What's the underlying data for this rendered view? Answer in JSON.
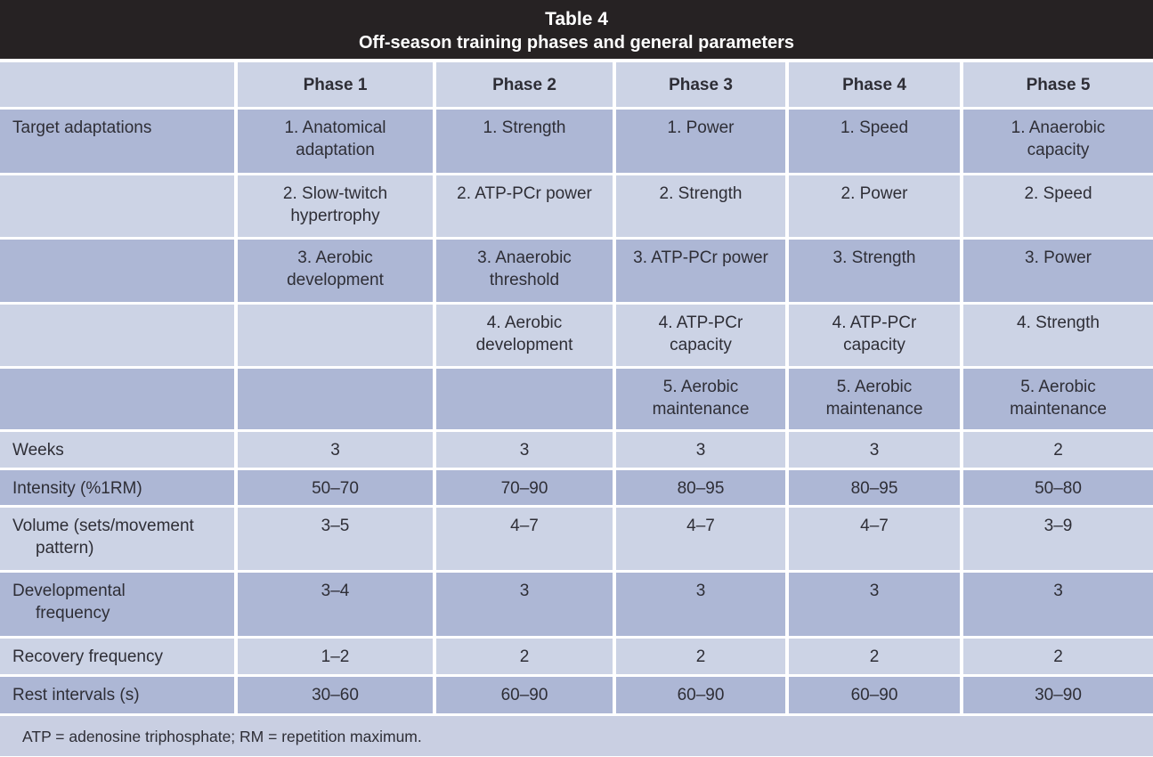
{
  "table": {
    "title": "Table 4",
    "subtitle": "Off-season training phases and general parameters",
    "columns": [
      "Phase 1",
      "Phase 2",
      "Phase 3",
      "Phase 4",
      "Phase 5"
    ],
    "adaptations": {
      "label": "Target adaptations",
      "rows": [
        [
          "1. Anatomical\nadaptation",
          "1. Strength",
          "1. Power",
          "1. Speed",
          "1. Anaerobic\ncapacity"
        ],
        [
          "2. Slow-twitch\nhypertrophy",
          "2. ATP-PCr power",
          "2. Strength",
          "2. Power",
          "2. Speed"
        ],
        [
          "3. Aerobic\ndevelopment",
          "3. Anaerobic\nthreshold",
          "3. ATP-PCr power",
          "3. Strength",
          "3. Power"
        ],
        [
          "",
          "4. Aerobic\ndevelopment",
          "4. ATP-PCr\ncapacity",
          "4. ATP-PCr\ncapacity",
          "4. Strength"
        ],
        [
          "",
          "",
          "5. Aerobic\nmaintenance",
          "5. Aerobic\nmaintenance",
          "5. Aerobic\nmaintenance"
        ]
      ]
    },
    "parameters": [
      {
        "label": "Weeks",
        "values": [
          "3",
          "3",
          "3",
          "3",
          "2"
        ]
      },
      {
        "label": "Intensity (%1RM)",
        "values": [
          "50–70",
          "70–90",
          "80–95",
          "80–95",
          "50–80"
        ]
      },
      {
        "label": "Volume (sets/movement\npattern)",
        "values": [
          "3–5",
          "4–7",
          "4–7",
          "4–7",
          "3–9"
        ]
      },
      {
        "label": "Developmental\nfrequency",
        "values": [
          "3–4",
          "3",
          "3",
          "3",
          "3"
        ]
      },
      {
        "label": "Recovery frequency",
        "values": [
          "1–2",
          "2",
          "2",
          "2",
          "2"
        ]
      },
      {
        "label": "Rest intervals (s)",
        "values": [
          "30–60",
          "60–90",
          "60–90",
          "60–90",
          "30–90"
        ]
      }
    ],
    "footnote": "ATP = adenosine triphosphate; RM = repetition maximum."
  },
  "colors": {
    "title_band_bg": "#262223",
    "row_light": "#ccd3e5",
    "row_dark": "#adb7d5",
    "footnote_bg": "#c9cfe2",
    "text": "#2e2e36",
    "title_text": "#ffffff"
  }
}
